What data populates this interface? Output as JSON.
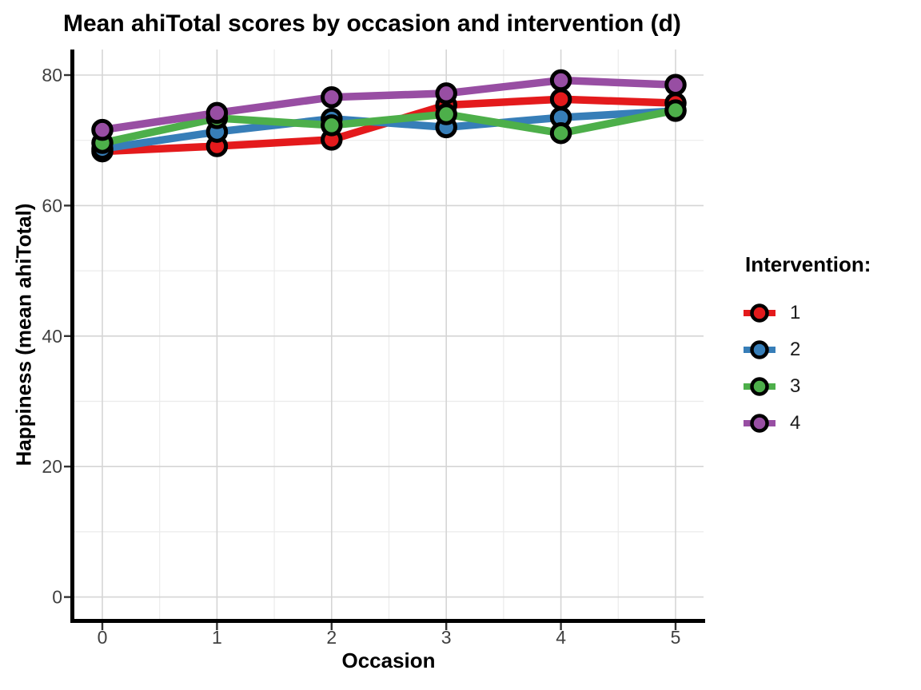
{
  "title": "Mean ahiTotal scores by occasion and intervention (d)",
  "axes": {
    "x": {
      "title": "Occasion",
      "ticks": [
        "0",
        "1",
        "2",
        "3",
        "4",
        "5"
      ]
    },
    "y": {
      "title": "Happiness (mean ahiTotal)",
      "ticks": [
        "0",
        "20",
        "40",
        "60",
        "80"
      ]
    }
  },
  "legend": {
    "title": "Intervention:",
    "items": [
      {
        "label": "1",
        "color": "#E41A1C"
      },
      {
        "label": "2",
        "color": "#377EB8"
      },
      {
        "label": "3",
        "color": "#4DAF4A"
      },
      {
        "label": "4",
        "color": "#984EA3"
      }
    ]
  },
  "colors": {
    "background": "#ffffff",
    "major_grid": "#d5d5d5",
    "minor_grid": "#ebebeb",
    "axis_line": "#000000",
    "tick_label": "#404040",
    "point_outline": "#000000"
  },
  "chart_data": {
    "type": "line",
    "title": "Mean ahiTotal scores by occasion and intervention (d)",
    "xlabel": "Occasion",
    "ylabel": "Happiness (mean ahiTotal)",
    "x": [
      0,
      1,
      2,
      3,
      4,
      5
    ],
    "xlim": [
      0,
      5
    ],
    "ylim": [
      0,
      80
    ],
    "grid": true,
    "legend_position": "right",
    "marker": "circle-black-outline",
    "series": [
      {
        "name": "1",
        "color": "#E41A1C",
        "values": [
          68.3,
          69.1,
          70.1,
          75.4,
          76.3,
          75.7
        ]
      },
      {
        "name": "2",
        "color": "#377EB8",
        "values": [
          68.7,
          71.3,
          73.3,
          72.0,
          73.5,
          74.5
        ]
      },
      {
        "name": "3",
        "color": "#4DAF4A",
        "values": [
          69.6,
          73.4,
          72.3,
          74.0,
          71.1,
          74.6
        ]
      },
      {
        "name": "4",
        "color": "#984EA3",
        "values": [
          71.6,
          74.2,
          76.6,
          77.2,
          79.2,
          78.5
        ]
      }
    ]
  }
}
